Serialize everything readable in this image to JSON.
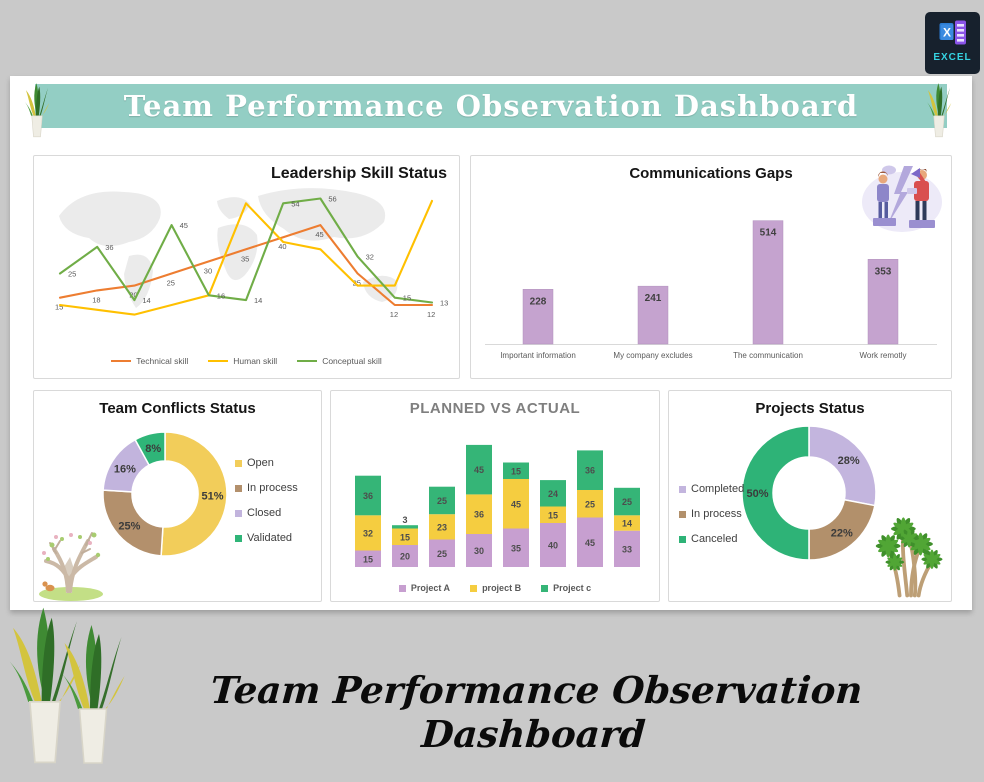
{
  "page": {
    "background_color": "#c9c9c9"
  },
  "app_badge": {
    "label": "EXCEL",
    "icon": "excel-logo-icon"
  },
  "header": {
    "title": "Team Performance Observation Dashboard",
    "banner_color": "#93cec4"
  },
  "footer": {
    "title": "Team Performance Observation Dashboard"
  },
  "decorations": {
    "banner_left": "snake-plant",
    "banner_right": "snake-plant",
    "bottom_left": [
      "snake-plant",
      "snake-plant"
    ],
    "conflicts_corner": "watercolor-tree",
    "projects_corner": "palm-trees",
    "communications_corner": "two-people-communication-illustration"
  },
  "chart_data": [
    {
      "name": "leadership",
      "type": "line",
      "title": "Leadership Skill Status",
      "background": "world-map",
      "x_count": 11,
      "ylim": [
        0,
        62
      ],
      "series": [
        {
          "name": "Technical skill",
          "color": "#ed7d31",
          "data_labels": true,
          "values": [
            15,
            18,
            20,
            25,
            30,
            35,
            40,
            45,
            25,
            12,
            12
          ]
        },
        {
          "name": "Human skill",
          "color": "#ffc000",
          "data_labels": false,
          "values": [
            12,
            10,
            8,
            12,
            16,
            54,
            38,
            35,
            20,
            20,
            55
          ]
        },
        {
          "name": "Conceptual skill",
          "color": "#70ad47",
          "data_labels": true,
          "values": [
            25,
            36,
            14,
            45,
            16,
            14,
            54,
            56,
            32,
            15,
            13
          ]
        }
      ],
      "legend_position": "bottom"
    },
    {
      "name": "communications",
      "type": "bar",
      "title": "Communications Gaps",
      "categories": [
        "Important information",
        "My company excludes",
        "The communication",
        "Work remotly"
      ],
      "values": [
        228,
        241,
        514,
        353
      ],
      "bar_color": "#c5a3cf",
      "label_color": "#404040"
    },
    {
      "name": "conflicts",
      "type": "donut",
      "title": "Team Conflicts Status",
      "slices": [
        {
          "label": "Open",
          "value": 51,
          "color": "#f2cd5a"
        },
        {
          "label": "In process",
          "value": 25,
          "color": "#b3906c"
        },
        {
          "label": "Closed",
          "value": 16,
          "color": "#c2b4dd"
        },
        {
          "label": "Validated",
          "value": 8,
          "color": "#2fb578"
        }
      ],
      "label_format": "percent",
      "legend_position": "right"
    },
    {
      "name": "planned_vs_actual",
      "type": "stacked-bar",
      "title": "PLANNED VS ACTUAL",
      "series": [
        {
          "name": "Project A",
          "color": "#c79fd0",
          "values": [
            15,
            20,
            25,
            30,
            35,
            40,
            45,
            33
          ]
        },
        {
          "name": "project B",
          "color": "#f5cd40",
          "values": [
            32,
            15,
            23,
            36,
            45,
            15,
            25,
            14
          ]
        },
        {
          "name": "Project c",
          "color": "#35b577",
          "values": [
            36,
            3,
            25,
            45,
            15,
            24,
            36,
            25
          ]
        }
      ],
      "legend_position": "bottom"
    },
    {
      "name": "projects",
      "type": "donut",
      "title": "Projects Status",
      "slices": [
        {
          "label": "Completed",
          "value": 28,
          "color": "#c3b5de"
        },
        {
          "label": "In process",
          "value": 22,
          "color": "#b2906b"
        },
        {
          "label": "Canceled",
          "value": 50,
          "color": "#2eb377"
        }
      ],
      "label_format": "percent",
      "legend_position": "left"
    }
  ]
}
